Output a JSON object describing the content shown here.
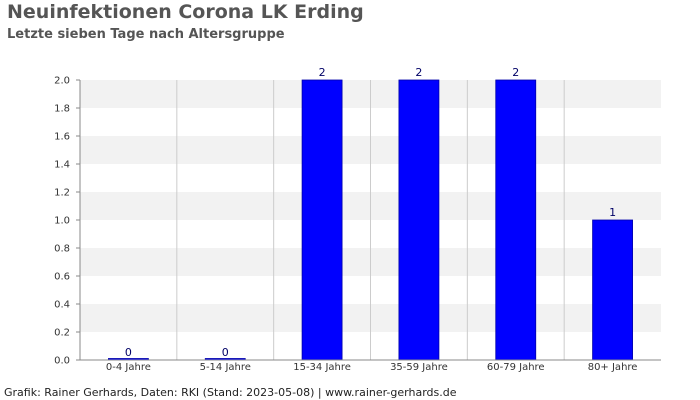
{
  "header": {
    "title": "Neuinfektionen Corona LK Erding",
    "subtitle": "Letzte sieben Tage nach Altersgruppe"
  },
  "footer": {
    "credit": "Grafik: Rainer Gerhards, Daten: RKI (Stand: 2023-05-08) | www.rainer-gerhards.de"
  },
  "chart_data": {
    "type": "bar",
    "title": "Neuinfektionen Corona LK Erding",
    "subtitle": "Letzte sieben Tage nach Altersgruppe",
    "xlabel": "",
    "ylabel": "",
    "categories": [
      "0-4 Jahre",
      "5-14 Jahre",
      "15-34 Jahre",
      "35-59 Jahre",
      "60-79 Jahre",
      "80+ Jahre"
    ],
    "values": [
      0,
      0,
      2,
      2,
      2,
      1
    ],
    "data_labels": [
      "0",
      "0",
      "2",
      "2",
      "2",
      "1"
    ],
    "ylim": [
      0,
      2.0
    ],
    "yticks": [
      "0.0",
      "0.2",
      "0.4",
      "0.6",
      "0.8",
      "1.0",
      "1.2",
      "1.4",
      "1.6",
      "1.8",
      "2.0"
    ],
    "grid": true,
    "legend": "none",
    "colors": {
      "bar": "#0000ff",
      "bar_outline": "#0000aa",
      "band": "#f2f2f2",
      "gridline": "#cccccc",
      "data_label": "#000066"
    }
  }
}
